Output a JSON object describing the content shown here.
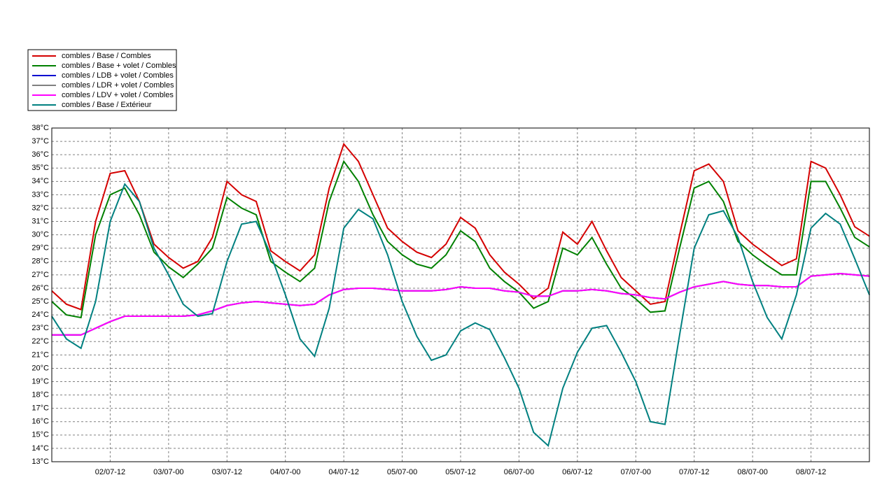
{
  "chart_data": {
    "type": "line",
    "x": [
      0,
      3,
      6,
      9,
      12,
      15,
      18,
      21,
      24,
      27,
      30,
      33,
      36,
      39,
      42,
      45,
      48,
      51,
      54,
      57,
      60,
      63,
      66,
      69,
      72,
      75,
      78,
      81,
      84,
      87,
      90,
      93,
      96,
      99,
      102,
      105,
      108,
      111,
      114,
      117,
      120,
      123,
      126,
      129,
      132,
      135,
      138,
      141,
      144,
      147,
      150,
      153,
      156,
      159,
      162,
      165,
      168
    ],
    "xlim": [
      0,
      168
    ],
    "xticks": [
      {
        "value": 12,
        "label": "02/07-12"
      },
      {
        "value": 24,
        "label": "03/07-00"
      },
      {
        "value": 36,
        "label": "03/07-12"
      },
      {
        "value": 48,
        "label": "04/07-00"
      },
      {
        "value": 60,
        "label": "04/07-12"
      },
      {
        "value": 72,
        "label": "05/07-00"
      },
      {
        "value": 84,
        "label": "05/07-12"
      },
      {
        "value": 96,
        "label": "06/07-00"
      },
      {
        "value": 108,
        "label": "06/07-12"
      },
      {
        "value": 120,
        "label": "07/07-00"
      },
      {
        "value": 132,
        "label": "07/07-12"
      },
      {
        "value": 144,
        "label": "08/07-00"
      },
      {
        "value": 156,
        "label": "08/07-12"
      }
    ],
    "ylim": [
      13,
      38
    ],
    "yticks": [
      {
        "value": 13,
        "label": "13°C"
      },
      {
        "value": 14,
        "label": "14°C"
      },
      {
        "value": 15,
        "label": "15°C"
      },
      {
        "value": 16,
        "label": "16°C"
      },
      {
        "value": 17,
        "label": "17°C"
      },
      {
        "value": 18,
        "label": "18°C"
      },
      {
        "value": 19,
        "label": "19°C"
      },
      {
        "value": 20,
        "label": "20°C"
      },
      {
        "value": 21,
        "label": "21°C"
      },
      {
        "value": 22,
        "label": "22°C"
      },
      {
        "value": 23,
        "label": "23°C"
      },
      {
        "value": 24,
        "label": "24°C"
      },
      {
        "value": 25,
        "label": "25°C"
      },
      {
        "value": 26,
        "label": "26°C"
      },
      {
        "value": 27,
        "label": "27°C"
      },
      {
        "value": 28,
        "label": "28°C"
      },
      {
        "value": 29,
        "label": "29°C"
      },
      {
        "value": 30,
        "label": "30°C"
      },
      {
        "value": 31,
        "label": "31°C"
      },
      {
        "value": 32,
        "label": "32°C"
      },
      {
        "value": 33,
        "label": "33°C"
      },
      {
        "value": 34,
        "label": "34°C"
      },
      {
        "value": 35,
        "label": "35°C"
      },
      {
        "value": 36,
        "label": "36°C"
      },
      {
        "value": 37,
        "label": "37°C"
      },
      {
        "value": 38,
        "label": "38°C"
      }
    ],
    "grid": true,
    "legend": "top-left",
    "series": [
      {
        "name": "combles / Base / Combles",
        "color": "#d40000",
        "values": [
          25.8,
          24.8,
          24.4,
          31.0,
          34.6,
          34.8,
          32.5,
          29.3,
          28.3,
          27.5,
          28.0,
          29.8,
          34.0,
          33.0,
          32.5,
          28.8,
          28.0,
          27.3,
          28.5,
          33.5,
          36.8,
          35.5,
          33.0,
          30.5,
          29.5,
          28.7,
          28.3,
          29.3,
          31.3,
          30.5,
          28.5,
          27.2,
          26.3,
          25.2,
          26.0,
          30.2,
          29.3,
          31.0,
          28.8,
          26.8,
          25.8,
          24.8,
          25.0,
          30.0,
          34.8,
          35.3,
          34.0,
          30.3,
          29.3,
          28.5,
          27.7,
          28.2,
          35.5,
          35.0,
          33.0,
          30.6,
          29.9
        ]
      },
      {
        "name": "combles / Base + volet / Combles",
        "color": "#008000",
        "values": [
          25.0,
          24.0,
          23.8,
          30.0,
          33.0,
          33.5,
          31.5,
          28.7,
          27.6,
          26.8,
          27.8,
          29.0,
          32.8,
          32.0,
          31.5,
          28.0,
          27.2,
          26.5,
          27.5,
          32.5,
          35.5,
          34.0,
          31.5,
          29.5,
          28.5,
          27.8,
          27.5,
          28.5,
          30.3,
          29.5,
          27.5,
          26.5,
          25.7,
          24.5,
          25.0,
          29.0,
          28.5,
          29.8,
          27.8,
          26.0,
          25.2,
          24.2,
          24.3,
          29.0,
          33.5,
          34.0,
          32.5,
          29.5,
          28.5,
          27.7,
          27.0,
          27.0,
          34.0,
          34.0,
          32.0,
          29.8,
          29.1
        ]
      },
      {
        "name": "combles / LDB + volet / Combles",
        "color": "#0000d0",
        "values": [
          22.5,
          22.5,
          22.5,
          23.0,
          23.5,
          23.9,
          23.9,
          23.9,
          23.9,
          23.9,
          24.0,
          24.3,
          24.7,
          24.9,
          25.0,
          24.9,
          24.8,
          24.7,
          24.8,
          25.5,
          25.9,
          26.0,
          26.0,
          25.9,
          25.8,
          25.8,
          25.8,
          25.9,
          26.1,
          26.0,
          26.0,
          25.8,
          25.7,
          25.4,
          25.4,
          25.8,
          25.8,
          25.9,
          25.8,
          25.6,
          25.5,
          25.3,
          25.2,
          25.7,
          26.1,
          26.3,
          26.5,
          26.3,
          26.2,
          26.2,
          26.1,
          26.1,
          26.9,
          27.0,
          27.1,
          27.0,
          26.9
        ]
      },
      {
        "name": "combles / LDR + volet / Combles",
        "color": "#808080",
        "values": [
          22.5,
          22.5,
          22.5,
          23.0,
          23.5,
          23.9,
          23.9,
          23.9,
          23.9,
          23.9,
          24.0,
          24.3,
          24.7,
          24.9,
          25.0,
          24.9,
          24.8,
          24.7,
          24.8,
          25.5,
          25.9,
          26.0,
          26.0,
          25.9,
          25.8,
          25.8,
          25.8,
          25.9,
          26.1,
          26.0,
          26.0,
          25.8,
          25.7,
          25.4,
          25.4,
          25.8,
          25.8,
          25.9,
          25.8,
          25.6,
          25.5,
          25.3,
          25.2,
          25.7,
          26.1,
          26.3,
          26.5,
          26.3,
          26.2,
          26.2,
          26.1,
          26.1,
          26.9,
          27.0,
          27.1,
          27.0,
          26.9
        ]
      },
      {
        "name": "combles / LDV + volet / Combles",
        "color": "#ff00ff",
        "values": [
          22.5,
          22.5,
          22.5,
          23.0,
          23.5,
          23.9,
          23.9,
          23.9,
          23.9,
          23.9,
          24.0,
          24.3,
          24.7,
          24.9,
          25.0,
          24.9,
          24.8,
          24.7,
          24.8,
          25.5,
          25.9,
          26.0,
          26.0,
          25.9,
          25.8,
          25.8,
          25.8,
          25.9,
          26.1,
          26.0,
          26.0,
          25.8,
          25.7,
          25.4,
          25.4,
          25.8,
          25.8,
          25.9,
          25.8,
          25.6,
          25.5,
          25.3,
          25.2,
          25.7,
          26.1,
          26.3,
          26.5,
          26.3,
          26.2,
          26.2,
          26.1,
          26.1,
          26.9,
          27.0,
          27.1,
          27.0,
          26.9
        ]
      },
      {
        "name": "combles / Base / Extérieur",
        "color": "#008080",
        "values": [
          23.9,
          22.2,
          21.5,
          25.0,
          31.0,
          33.8,
          32.5,
          29.0,
          27.0,
          24.8,
          23.9,
          24.1,
          28.0,
          30.8,
          31.0,
          28.5,
          25.5,
          22.2,
          20.9,
          24.5,
          30.5,
          31.9,
          31.2,
          28.5,
          25.0,
          22.4,
          20.6,
          21.0,
          22.8,
          23.4,
          22.9,
          20.8,
          18.5,
          15.2,
          14.2,
          18.5,
          21.2,
          23.0,
          23.2,
          21.2,
          19.0,
          16.0,
          15.8,
          22.5,
          29.0,
          31.5,
          31.8,
          29.8,
          26.5,
          23.8,
          22.2,
          25.5,
          30.5,
          31.6,
          30.8,
          28.2,
          25.5
        ]
      }
    ]
  }
}
